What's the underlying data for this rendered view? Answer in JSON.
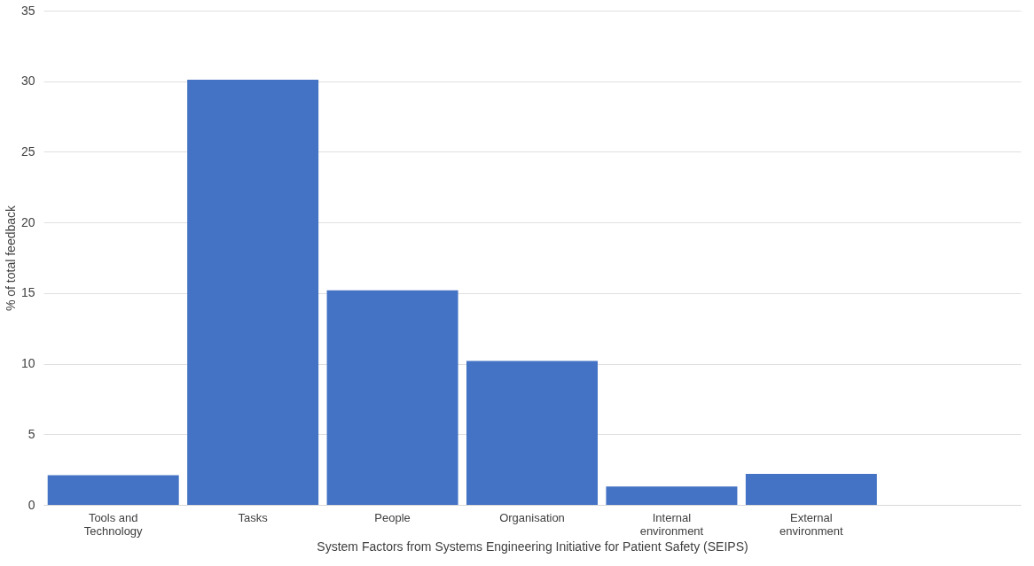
{
  "chart_data": {
    "type": "bar",
    "xlabel": "System Factors from Systems Engineering Initiative for Patient Safety (SEIPS)",
    "ylabel": "% of total feedback",
    "categories": [
      "Tools and Technology",
      "Tasks",
      "People",
      "Organisation",
      "Internal environment",
      "External environment",
      null
    ],
    "values": [
      2.1,
      30.1,
      15.2,
      10.2,
      1.3,
      2.2,
      null
    ],
    "color": "#4472c4",
    "ylim": [
      0,
      35
    ],
    "yticks": [
      0,
      5,
      10,
      15,
      20,
      25,
      30,
      35
    ],
    "grid": "y"
  }
}
